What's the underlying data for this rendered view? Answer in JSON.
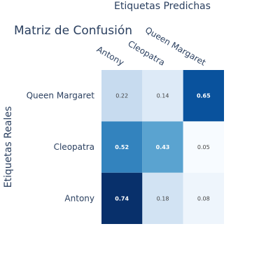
{
  "chart_data": {
    "type": "heatmap",
    "title": "Matriz de Confusión",
    "xlabel": "Etiquetas Predichas",
    "ylabel": "Etiquetas Reales",
    "x_categories": [
      "Antony",
      "Cleopatra",
      "Queen Margaret"
    ],
    "y_categories": [
      "Antony",
      "Cleopatra",
      "Queen Margaret"
    ],
    "z": [
      [
        0.74,
        0.18,
        0.08
      ],
      [
        0.52,
        0.43,
        0.05
      ],
      [
        0.22,
        0.14,
        0.65
      ]
    ],
    "zlim": [
      0.05,
      0.74
    ],
    "colorscale": "Blues",
    "show_colorbar": false
  }
}
